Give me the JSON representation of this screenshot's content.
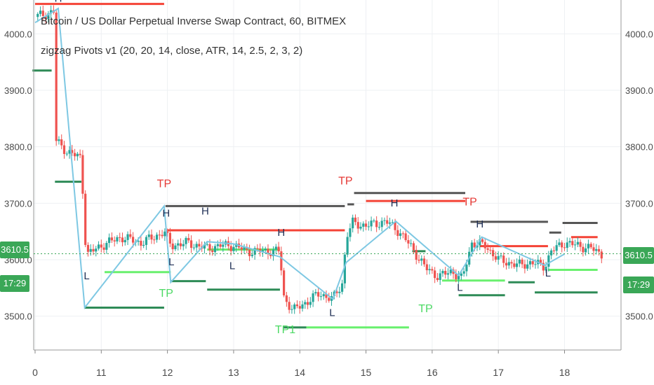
{
  "header": {
    "title": "Bitcoin / US Dollar Perpetual Inverse Swap Contract, 60, BITMEX",
    "indicator": "zigzag Pivots v1 (20, 20, 14, close, ATR, 14, 2.5, 2, 3, 2)"
  },
  "price_scale": {
    "left_current": "3610.5",
    "left_countdown": "17:29",
    "right_current": "3610.5",
    "right_countdown": "17:29"
  },
  "colors": {
    "up": "#26a69a",
    "down": "#ef5350",
    "zigzag": "#7ec8e3",
    "pivot_high_line": "#555555",
    "resistance": "#f44336",
    "support_light": "#69f06e",
    "support_dark": "#2e8b57",
    "badge": "#3aa757"
  },
  "chart_data": {
    "type": "candlestick",
    "title": "Bitcoin / US Dollar Perpetual Inverse Swap Contract, 60, BITMEX",
    "x_ticks": [
      "0",
      "11",
      "12",
      "13",
      "14",
      "15",
      "16",
      "17",
      "18"
    ],
    "y_ticks": [
      "4000.0",
      "3900.0",
      "3800.0",
      "3700.0",
      "3600.0",
      "3500.0"
    ],
    "ylim": [
      3440,
      4060
    ],
    "x_range": [
      10.0,
      18.7
    ],
    "grid": true,
    "current_price": 3610.5,
    "price_path": [
      [
        10.0,
        4030
      ],
      [
        10.3,
        4040
      ],
      [
        10.32,
        3810
      ],
      [
        10.5,
        3790
      ],
      [
        10.7,
        3780
      ],
      [
        10.75,
        3640
      ],
      [
        10.8,
        3610
      ],
      [
        11.0,
        3625
      ],
      [
        11.3,
        3640
      ],
      [
        11.6,
        3630
      ],
      [
        11.8,
        3640
      ],
      [
        11.95,
        3650
      ],
      [
        12.05,
        3625
      ],
      [
        12.3,
        3630
      ],
      [
        12.6,
        3620
      ],
      [
        12.8,
        3625
      ],
      [
        13.0,
        3625
      ],
      [
        13.2,
        3615
      ],
      [
        13.5,
        3615
      ],
      [
        13.7,
        3615
      ],
      [
        13.75,
        3535
      ],
      [
        13.9,
        3510
      ],
      [
        14.1,
        3525
      ],
      [
        14.3,
        3540
      ],
      [
        14.5,
        3530
      ],
      [
        14.65,
        3560
      ],
      [
        14.7,
        3640
      ],
      [
        14.8,
        3665
      ],
      [
        15.0,
        3660
      ],
      [
        15.3,
        3668
      ],
      [
        15.5,
        3650
      ],
      [
        15.7,
        3620
      ],
      [
        15.9,
        3585
      ],
      [
        16.1,
        3570
      ],
      [
        16.3,
        3580
      ],
      [
        16.45,
        3565
      ],
      [
        16.6,
        3630
      ],
      [
        16.8,
        3625
      ],
      [
        17.0,
        3600
      ],
      [
        17.3,
        3590
      ],
      [
        17.5,
        3595
      ],
      [
        17.7,
        3588
      ],
      [
        17.8,
        3615
      ],
      [
        18.0,
        3630
      ],
      [
        18.2,
        3625
      ],
      [
        18.4,
        3620
      ],
      [
        18.55,
        3610.5
      ]
    ],
    "zigzag": [
      [
        10.0,
        4020
      ],
      [
        10.35,
        4045
      ],
      [
        10.75,
        3515
      ],
      [
        11.95,
        3695
      ],
      [
        12.05,
        3560
      ],
      [
        12.6,
        3632
      ],
      [
        13.0,
        3628
      ],
      [
        13.7,
        3605
      ],
      [
        14.5,
        3530
      ],
      [
        14.7,
        3595
      ],
      [
        15.45,
        3668
      ],
      [
        16.4,
        3572
      ],
      [
        16.75,
        3640
      ],
      [
        17.7,
        3590
      ],
      [
        18.0,
        3610
      ]
    ],
    "pivot_labels": [
      {
        "text": "H",
        "x": 10.35,
        "y": 4057,
        "kind": "high"
      },
      {
        "text": "L",
        "x": 10.78,
        "y": 3565,
        "kind": "low"
      },
      {
        "text": "TP",
        "x": 11.95,
        "y": 3728,
        "kind": "tp_high"
      },
      {
        "text": "H",
        "x": 11.98,
        "y": 3676,
        "kind": "high"
      },
      {
        "text": "L",
        "x": 12.06,
        "y": 3590,
        "kind": "low"
      },
      {
        "text": "TP",
        "x": 11.98,
        "y": 3534,
        "kind": "tp_low"
      },
      {
        "text": "H",
        "x": 12.57,
        "y": 3680,
        "kind": "high"
      },
      {
        "text": "L",
        "x": 12.98,
        "y": 3583,
        "kind": "low"
      },
      {
        "text": "H",
        "x": 13.72,
        "y": 3642,
        "kind": "high"
      },
      {
        "text": "TP1",
        "x": 13.78,
        "y": 3470,
        "kind": "tp_low"
      },
      {
        "text": "L",
        "x": 14.49,
        "y": 3500,
        "kind": "low"
      },
      {
        "text": "TP",
        "x": 14.69,
        "y": 3733,
        "kind": "tp_high"
      },
      {
        "text": "H",
        "x": 15.43,
        "y": 3694,
        "kind": "high"
      },
      {
        "text": "TP",
        "x": 15.9,
        "y": 3507,
        "kind": "tp_low"
      },
      {
        "text": "L",
        "x": 16.42,
        "y": 3545,
        "kind": "low"
      },
      {
        "text": "TP",
        "x": 16.57,
        "y": 3696,
        "kind": "tp_high"
      },
      {
        "text": "H",
        "x": 16.72,
        "y": 3657,
        "kind": "high"
      },
      {
        "text": "L",
        "x": 17.75,
        "y": 3570,
        "kind": "low"
      }
    ],
    "levels": [
      {
        "x1": 10.0,
        "x2": 11.95,
        "y": 4053,
        "kind": "resistance"
      },
      {
        "x1": 9.96,
        "x2": 10.25,
        "y": 3935,
        "kind": "support_dark"
      },
      {
        "x1": 10.3,
        "x2": 10.7,
        "y": 3738,
        "kind": "support_dark"
      },
      {
        "x1": 10.75,
        "x2": 11.95,
        "y": 3515,
        "kind": "support_dark"
      },
      {
        "x1": 11.05,
        "x2": 12.05,
        "y": 3578,
        "kind": "support_light"
      },
      {
        "x1": 11.97,
        "x2": 14.68,
        "y": 3695,
        "kind": "pivot_high"
      },
      {
        "x1": 12.0,
        "x2": 14.68,
        "y": 3652,
        "kind": "resistance"
      },
      {
        "x1": 12.05,
        "x2": 12.58,
        "y": 3562,
        "kind": "support_dark"
      },
      {
        "x1": 12.6,
        "x2": 13.7,
        "y": 3618,
        "kind": "support_light"
      },
      {
        "x1": 12.6,
        "x2": 13.7,
        "y": 3547,
        "kind": "support_dark"
      },
      {
        "x1": 13.75,
        "x2": 14.1,
        "y": 3480,
        "kind": "support_dark"
      },
      {
        "x1": 14.1,
        "x2": 15.65,
        "y": 3480,
        "kind": "support_light"
      },
      {
        "x1": 14.72,
        "x2": 14.82,
        "y": 3698,
        "kind": "pivot_high"
      },
      {
        "x1": 14.82,
        "x2": 16.5,
        "y": 3718,
        "kind": "pivot_high"
      },
      {
        "x1": 15.0,
        "x2": 16.5,
        "y": 3704,
        "kind": "resistance"
      },
      {
        "x1": 15.7,
        "x2": 15.9,
        "y": 3615,
        "kind": "support_dark"
      },
      {
        "x1": 16.15,
        "x2": 17.1,
        "y": 3563,
        "kind": "support_light"
      },
      {
        "x1": 16.4,
        "x2": 17.1,
        "y": 3537,
        "kind": "support_dark"
      },
      {
        "x1": 16.58,
        "x2": 17.75,
        "y": 3667,
        "kind": "pivot_high"
      },
      {
        "x1": 16.72,
        "x2": 17.75,
        "y": 3624,
        "kind": "resistance"
      },
      {
        "x1": 17.15,
        "x2": 17.55,
        "y": 3560,
        "kind": "support_dark"
      },
      {
        "x1": 17.55,
        "x2": 18.5,
        "y": 3542,
        "kind": "support_dark"
      },
      {
        "x1": 17.75,
        "x2": 18.5,
        "y": 3582,
        "kind": "support_light"
      },
      {
        "x1": 17.77,
        "x2": 17.95,
        "y": 3648,
        "kind": "pivot_high"
      },
      {
        "x1": 17.97,
        "x2": 18.5,
        "y": 3665,
        "kind": "pivot_high"
      },
      {
        "x1": 18.1,
        "x2": 18.5,
        "y": 3640,
        "kind": "resistance"
      }
    ]
  }
}
